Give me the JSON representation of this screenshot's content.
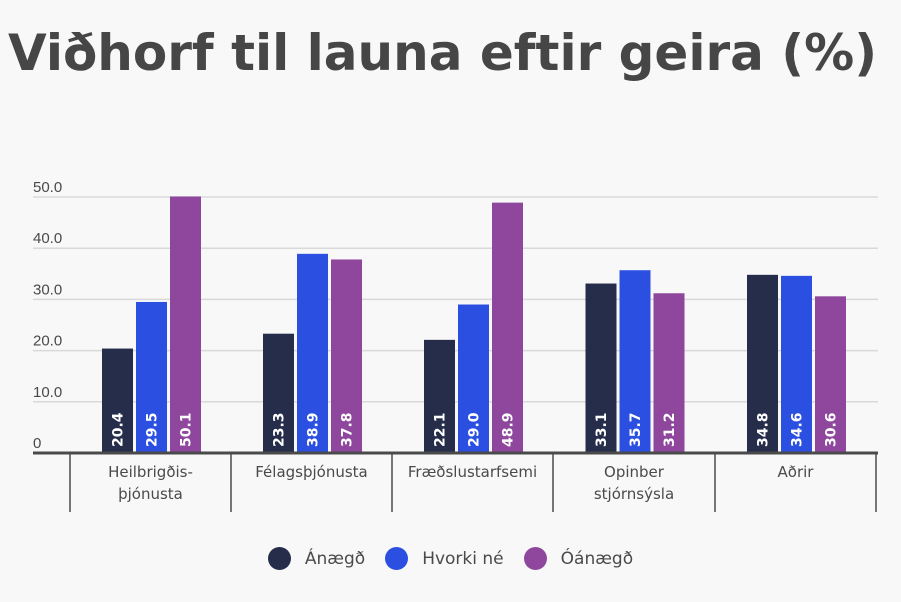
{
  "chart_data": {
    "type": "bar",
    "title": "Viðhorf til launa eftir geira (%)",
    "xlabel": "",
    "ylabel": "",
    "ylim": [
      0,
      50
    ],
    "yticks": [
      "0",
      "10.0",
      "20.0",
      "30.0",
      "40.0",
      "50.0"
    ],
    "ytick_values": [
      0,
      10,
      20,
      30,
      40,
      50
    ],
    "grid": true,
    "legend_position": "bottom",
    "categories": [
      [
        "Heilbrigðis-",
        "þjónusta"
      ],
      [
        "Félagsþjónusta"
      ],
      [
        "Fræðslustarfsemi"
      ],
      [
        "Opinber",
        "stjórnsýsla"
      ],
      [
        "Aðrir"
      ]
    ],
    "series": [
      {
        "name": "Ánægð",
        "color": "#252d4a",
        "values": [
          20.4,
          23.3,
          22.1,
          33.1,
          34.8
        ],
        "labels": [
          "20.4",
          "23.3",
          "22.1",
          "33.1",
          "34.8"
        ]
      },
      {
        "name": "Hvorki né",
        "color": "#2b4fe0",
        "values": [
          29.5,
          38.9,
          29.0,
          35.7,
          34.6
        ],
        "labels": [
          "29.5",
          "38.9",
          "29.0",
          "35.7",
          "34.6"
        ]
      },
      {
        "name": "Óánægð",
        "color": "#8e479d",
        "values": [
          50.1,
          37.8,
          48.9,
          31.2,
          30.6
        ],
        "labels": [
          "50.1",
          "37.8",
          "48.9",
          "31.2",
          "30.6"
        ]
      }
    ]
  }
}
